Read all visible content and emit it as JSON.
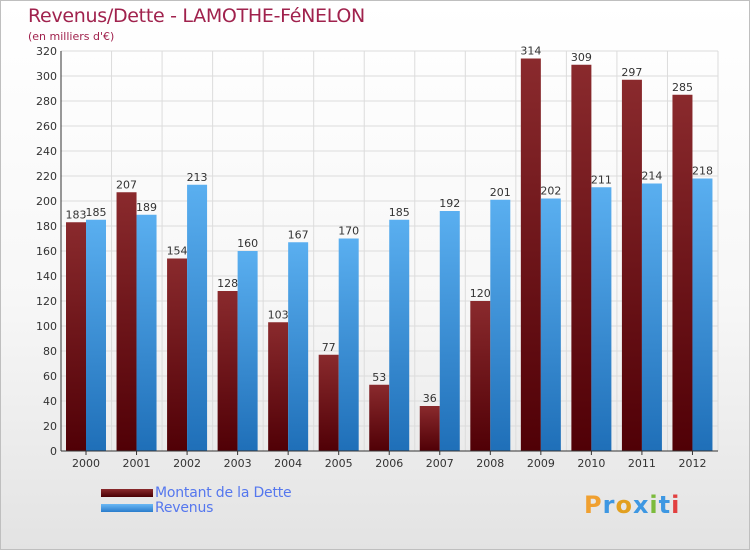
{
  "header": {
    "title": "Revenus/Dette - LAMOTHE-FéNELON",
    "subtitle": "(en milliers d'€)"
  },
  "legend": {
    "items": [
      {
        "label": "Montant de la Dette",
        "color": "#6e0f14"
      },
      {
        "label": "Revenus",
        "color": "#3d97e2"
      }
    ]
  },
  "logo": {
    "text": "Proxiti",
    "letters": [
      "P",
      "r",
      "o",
      "x",
      "i",
      "t",
      "i"
    ],
    "colors": [
      "#f0a030",
      "#3d97e2",
      "#e2a020",
      "#3d97e2",
      "#7cbb3c",
      "#3d97e2",
      "#e24040"
    ]
  },
  "chart_data": {
    "type": "bar",
    "categories": [
      "2000",
      "2001",
      "2002",
      "2003",
      "2004",
      "2005",
      "2006",
      "2007",
      "2008",
      "2009",
      "2010",
      "2011",
      "2012"
    ],
    "series": [
      {
        "name": "Montant de la Dette",
        "color": "#6e0f14",
        "values": [
          183,
          207,
          154,
          128,
          103,
          77,
          53,
          36,
          120,
          314,
          309,
          297,
          285
        ]
      },
      {
        "name": "Revenus",
        "color": "#3d97e2",
        "values": [
          185,
          189,
          213,
          160,
          167,
          170,
          185,
          192,
          201,
          202,
          211,
          214,
          218
        ]
      }
    ],
    "ylim": [
      0,
      320
    ],
    "yticks": [
      0,
      20,
      40,
      60,
      80,
      100,
      120,
      140,
      160,
      180,
      200,
      220,
      240,
      260,
      280,
      300,
      320
    ],
    "grid": true,
    "legend_position": "bottom-left"
  }
}
